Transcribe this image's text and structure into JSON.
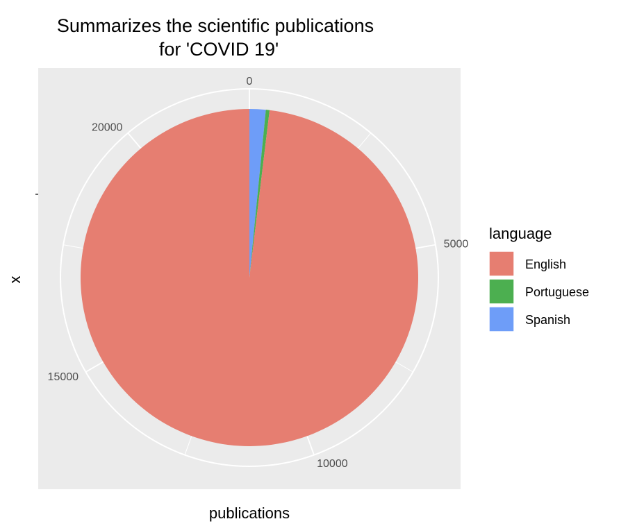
{
  "chart_data": {
    "type": "pie",
    "title_lines": [
      "Summarizes the scientific publications",
      "for 'COVID 19'"
    ],
    "xlabel": "publications",
    "ylabel": "x",
    "theta_axis": {
      "range": [
        0,
        22500
      ],
      "ticks": [
        0,
        5000,
        10000,
        15000,
        20000
      ],
      "tick_labels": [
        "0",
        "5000",
        "10000",
        "15000",
        "20000"
      ]
    },
    "legend": {
      "title": "language",
      "position": "right"
    },
    "series": [
      {
        "name": "Spanish",
        "value": 350,
        "color": "#619CFF"
      },
      {
        "name": "Portuguese",
        "value": 80,
        "color": "#00BA38"
      },
      {
        "name": "English",
        "value": 22070,
        "color": "#F8766D"
      }
    ],
    "legend_order": [
      "English",
      "Portuguese",
      "Spanish"
    ],
    "colors": {
      "panel_background": "#EBEBEB",
      "grid": "#FFFFFF",
      "English": "#E67E71",
      "Portuguese": "#4CAF50",
      "Spanish": "#6E9DF8"
    }
  }
}
